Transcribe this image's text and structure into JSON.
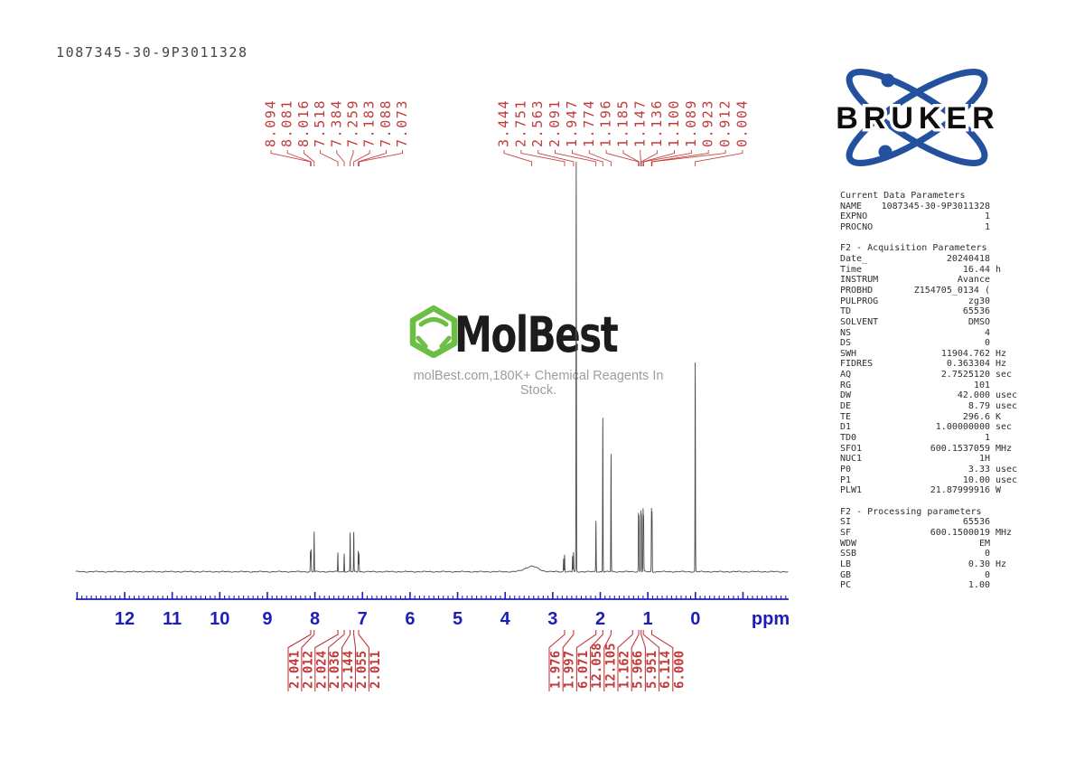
{
  "header": {
    "sample_id": "1087345-30-9P3011328"
  },
  "watermark": {
    "brand": "MolBest",
    "tagline": "molBest.com,180K+ Chemical Reagents In Stock.",
    "logo_color": "#6cbe45"
  },
  "bruker": {
    "brand": "BRUKER",
    "logo_color": "#23519e"
  },
  "colors": {
    "label_red": "#c23a3a",
    "axis_blue": "#1d1db8",
    "trace": "#4a4a4a"
  },
  "chart_data": {
    "type": "line",
    "description": "1H NMR spectrum (600 MHz, DMSO)",
    "xlabel_unit": "ppm",
    "x_ticks": [
      "12",
      "11",
      "10",
      "9",
      "8",
      "7",
      "6",
      "5",
      "4",
      "3",
      "2",
      "1",
      "0"
    ],
    "x_range_ppm": [
      13.0,
      -2.0
    ],
    "peak_labels_ppm": {
      "aromatic_group": [
        "8.094",
        "8.081",
        "8.016",
        "7.518",
        "7.384",
        "7.259",
        "7.183",
        "7.088",
        "7.073"
      ],
      "aliphatic_group": [
        "3.444",
        "2.751",
        "2.563",
        "2.091",
        "1.947",
        "1.774",
        "1.196",
        "1.185",
        "1.147",
        "1.136",
        "1.100",
        "1.089",
        "0.923",
        "0.912",
        "0.004"
      ]
    },
    "integral_labels": {
      "left_group": [
        "2.041",
        "2.012",
        "2.024",
        "2.036",
        "2.144",
        "2.055",
        "2.011"
      ],
      "right_group": [
        "1.976",
        "1.997",
        "6.071",
        "12.058",
        "12.105",
        "1.162",
        "5.966",
        "5.951",
        "6.114",
        "6.000"
      ]
    },
    "peaks": [
      {
        "ppm": 8.094,
        "intensity": 22
      },
      {
        "ppm": 8.081,
        "intensity": 24
      },
      {
        "ppm": 8.016,
        "intensity": 44
      },
      {
        "ppm": 7.518,
        "intensity": 21
      },
      {
        "ppm": 7.384,
        "intensity": 20
      },
      {
        "ppm": 7.259,
        "intensity": 43
      },
      {
        "ppm": 7.183,
        "intensity": 43
      },
      {
        "ppm": 7.088,
        "intensity": 23
      },
      {
        "ppm": 7.073,
        "intensity": 20
      },
      {
        "ppm": 3.444,
        "intensity": 6,
        "broad": true
      },
      {
        "ppm": 2.771,
        "intensity": 14
      },
      {
        "ppm": 2.751,
        "intensity": 19
      },
      {
        "ppm": 2.583,
        "intensity": 17
      },
      {
        "ppm": 2.563,
        "intensity": 21
      },
      {
        "ppm": 2.506,
        "intensity": 453
      },
      {
        "ppm": 2.091,
        "intensity": 56
      },
      {
        "ppm": 1.947,
        "intensity": 170
      },
      {
        "ppm": 1.774,
        "intensity": 130
      },
      {
        "ppm": 1.196,
        "intensity": 63
      },
      {
        "ppm": 1.185,
        "intensity": 60
      },
      {
        "ppm": 1.147,
        "intensity": 66
      },
      {
        "ppm": 1.136,
        "intensity": 62
      },
      {
        "ppm": 1.1,
        "intensity": 68
      },
      {
        "ppm": 1.089,
        "intensity": 60
      },
      {
        "ppm": 0.923,
        "intensity": 68
      },
      {
        "ppm": 0.912,
        "intensity": 64
      },
      {
        "ppm": 0.004,
        "intensity": 231
      }
    ]
  },
  "parameters_panel": {
    "sections": [
      {
        "title": "Current Data Parameters",
        "rows": [
          {
            "l": "NAME",
            "v": "1087345-30-9P3011328",
            "u": ""
          },
          {
            "l": "EXPNO",
            "v": "1",
            "u": ""
          },
          {
            "l": "PROCNO",
            "v": "1",
            "u": ""
          }
        ]
      },
      {
        "title": "F2 - Acquisition Parameters",
        "rows": [
          {
            "l": "Date_",
            "v": "20240418",
            "u": ""
          },
          {
            "l": "Time",
            "v": "16.44",
            "u": "h"
          },
          {
            "l": "INSTRUM",
            "v": "Avance",
            "u": ""
          },
          {
            "l": "PROBHD",
            "v": "Z154705_0134 (",
            "u": ""
          },
          {
            "l": "PULPROG",
            "v": "zg30",
            "u": ""
          },
          {
            "l": "TD",
            "v": "65536",
            "u": ""
          },
          {
            "l": "SOLVENT",
            "v": "DMSO",
            "u": ""
          },
          {
            "l": "NS",
            "v": "4",
            "u": ""
          },
          {
            "l": "DS",
            "v": "0",
            "u": ""
          },
          {
            "l": "SWH",
            "v": "11904.762",
            "u": "Hz"
          },
          {
            "l": "FIDRES",
            "v": "0.363304",
            "u": "Hz"
          },
          {
            "l": "AQ",
            "v": "2.7525120",
            "u": "sec"
          },
          {
            "l": "RG",
            "v": "101",
            "u": ""
          },
          {
            "l": "DW",
            "v": "42.000",
            "u": "usec"
          },
          {
            "l": "DE",
            "v": "8.79",
            "u": "usec"
          },
          {
            "l": "TE",
            "v": "296.6",
            "u": "K"
          },
          {
            "l": "D1",
            "v": "1.00000000",
            "u": "sec"
          },
          {
            "l": "TD0",
            "v": "1",
            "u": ""
          },
          {
            "l": "SFO1",
            "v": "600.1537059",
            "u": "MHz"
          },
          {
            "l": "NUC1",
            "v": "1H",
            "u": ""
          },
          {
            "l": "P0",
            "v": "3.33",
            "u": "usec"
          },
          {
            "l": "P1",
            "v": "10.00",
            "u": "usec"
          },
          {
            "l": "PLW1",
            "v": "21.87999916",
            "u": "W"
          }
        ]
      },
      {
        "title": "F2 - Processing parameters",
        "rows": [
          {
            "l": "SI",
            "v": "65536",
            "u": ""
          },
          {
            "l": "SF",
            "v": "600.1500019",
            "u": "MHz"
          },
          {
            "l": "WDW",
            "v": "EM",
            "u": ""
          },
          {
            "l": "SSB",
            "v": "0",
            "u": ""
          },
          {
            "l": "LB",
            "v": "0.30",
            "u": "Hz"
          },
          {
            "l": "GB",
            "v": "0",
            "u": ""
          },
          {
            "l": "PC",
            "v": "1.00",
            "u": ""
          }
        ]
      }
    ]
  }
}
